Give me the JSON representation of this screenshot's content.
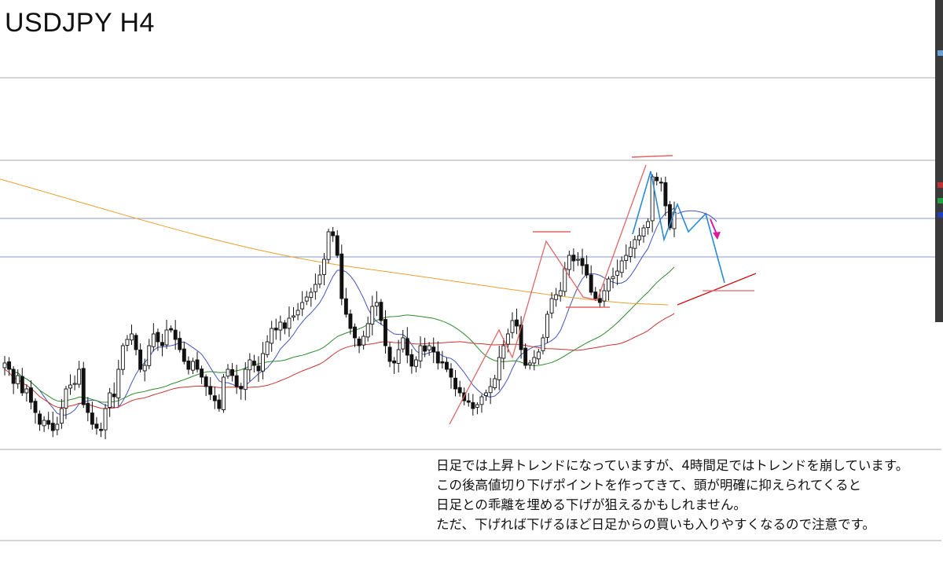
{
  "title": "USDJPY H4",
  "note_lines": [
    "日足では上昇トレンドになっていますが、4時間足ではトレンドを崩しています。",
    "この後高値切り下げポイントを作ってきて、頭が明確に抑えられてくると",
    "日足との乖離を埋める下げが狙えるかもしれません。",
    "ただ、下げれば下げるほど日足からの買いも入りやすくなるので注意です。"
  ],
  "colors": {
    "candle": "#111111",
    "ma_fast": "#4455bb",
    "ma_green": "#2e8b2e",
    "ma_red": "#cc3333",
    "ma_orange": "#e8a030",
    "zigzag_red": "#e06666",
    "zigzag_blue": "#2a8ad8",
    "projection_arrow": "#e0189c",
    "hline_gray": "#aaaaaa",
    "hline_blue": "#8899cc"
  },
  "chart_data": {
    "type": "candlestick",
    "symbol": "USDJPY",
    "timeframe": "H4",
    "title": "USDJPY H4",
    "y_axis_labels_visible": false,
    "candles_close_trace": [
      462,
      470,
      488,
      478,
      500,
      495,
      512,
      525,
      540,
      535,
      540,
      548,
      540,
      520,
      495,
      490,
      488,
      470,
      515,
      525,
      540,
      545,
      548,
      520,
      500,
      505,
      470,
      440,
      432,
      425,
      445,
      470,
      465,
      440,
      425,
      435,
      440,
      420,
      420,
      432,
      445,
      460,
      470,
      460,
      470,
      480,
      492,
      502,
      510,
      520,
      480,
      470,
      478,
      492,
      495,
      470,
      458,
      465,
      472,
      450,
      435,
      418,
      420,
      410,
      418,
      405,
      402,
      395,
      385,
      378,
      372,
      362,
      350,
      330,
      295,
      300,
      325,
      380,
      400,
      418,
      430,
      440,
      428,
      412,
      390,
      385,
      408,
      440,
      460,
      462,
      445,
      430,
      452,
      466,
      458,
      440,
      447,
      440,
      448,
      462,
      462,
      470,
      480,
      495,
      500,
      510,
      512,
      520,
      515,
      505,
      500,
      492,
      482,
      455,
      440,
      425,
      408,
      415,
      445,
      465,
      462,
      455,
      448,
      430,
      400,
      380,
      375,
      370,
      342,
      325,
      332,
      330,
      338,
      350,
      372,
      380,
      385,
      370,
      355,
      352,
      345,
      332,
      325,
      315,
      305,
      300,
      290,
      282,
      225,
      230,
      232,
      262,
      290,
      270
    ],
    "moving_averages": [
      {
        "color": "blue"
      },
      {
        "color": "green"
      },
      {
        "color": "red"
      },
      {
        "color": "orange"
      }
    ],
    "horizontal_lines": [
      {
        "color": "gray"
      },
      {
        "color": "gray"
      },
      {
        "color": "blue"
      },
      {
        "color": "blue"
      },
      {
        "color": "gray"
      }
    ],
    "grid": false
  }
}
